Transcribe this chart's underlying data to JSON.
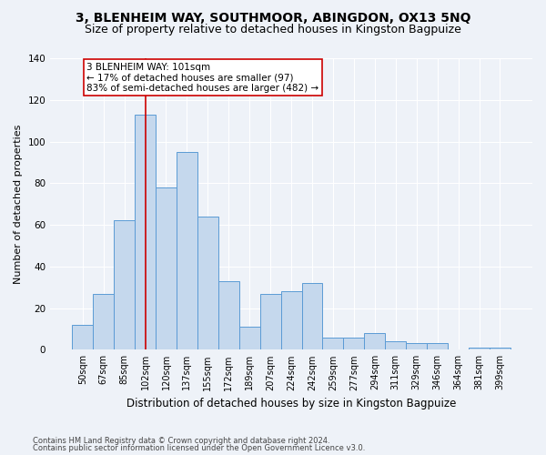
{
  "title": "3, BLENHEIM WAY, SOUTHMOOR, ABINGDON, OX13 5NQ",
  "subtitle": "Size of property relative to detached houses in Kingston Bagpuize",
  "xlabel": "Distribution of detached houses by size in Kingston Bagpuize",
  "ylabel": "Number of detached properties",
  "footer_line1": "Contains HM Land Registry data © Crown copyright and database right 2024.",
  "footer_line2": "Contains public sector information licensed under the Open Government Licence v3.0.",
  "bar_labels": [
    "50sqm",
    "67sqm",
    "85sqm",
    "102sqm",
    "120sqm",
    "137sqm",
    "155sqm",
    "172sqm",
    "189sqm",
    "207sqm",
    "224sqm",
    "242sqm",
    "259sqm",
    "277sqm",
    "294sqm",
    "311sqm",
    "329sqm",
    "346sqm",
    "364sqm",
    "381sqm",
    "399sqm"
  ],
  "bar_values": [
    12,
    27,
    62,
    113,
    78,
    95,
    64,
    33,
    11,
    27,
    28,
    32,
    6,
    6,
    8,
    4,
    3,
    3,
    0,
    1,
    1
  ],
  "bar_color": "#c5d8ed",
  "bar_edge_color": "#5b9bd5",
  "ylim": [
    0,
    140
  ],
  "yticks": [
    0,
    20,
    40,
    60,
    80,
    100,
    120,
    140
  ],
  "vline_index": 3,
  "vline_color": "#cc0000",
  "annotation_text": "3 BLENHEIM WAY: 101sqm\n← 17% of detached houses are smaller (97)\n83% of semi-detached houses are larger (482) →",
  "annotation_box_color": "#ffffff",
  "annotation_border_color": "#cc0000",
  "bg_color": "#eef2f8",
  "plot_bg_color": "#eef2f8",
  "grid_color": "#ffffff",
  "title_fontsize": 10,
  "subtitle_fontsize": 9,
  "annotation_fontsize": 7.5,
  "ylabel_fontsize": 8,
  "xlabel_fontsize": 8.5,
  "tick_fontsize": 7,
  "ytick_fontsize": 7.5,
  "footer_fontsize": 6
}
